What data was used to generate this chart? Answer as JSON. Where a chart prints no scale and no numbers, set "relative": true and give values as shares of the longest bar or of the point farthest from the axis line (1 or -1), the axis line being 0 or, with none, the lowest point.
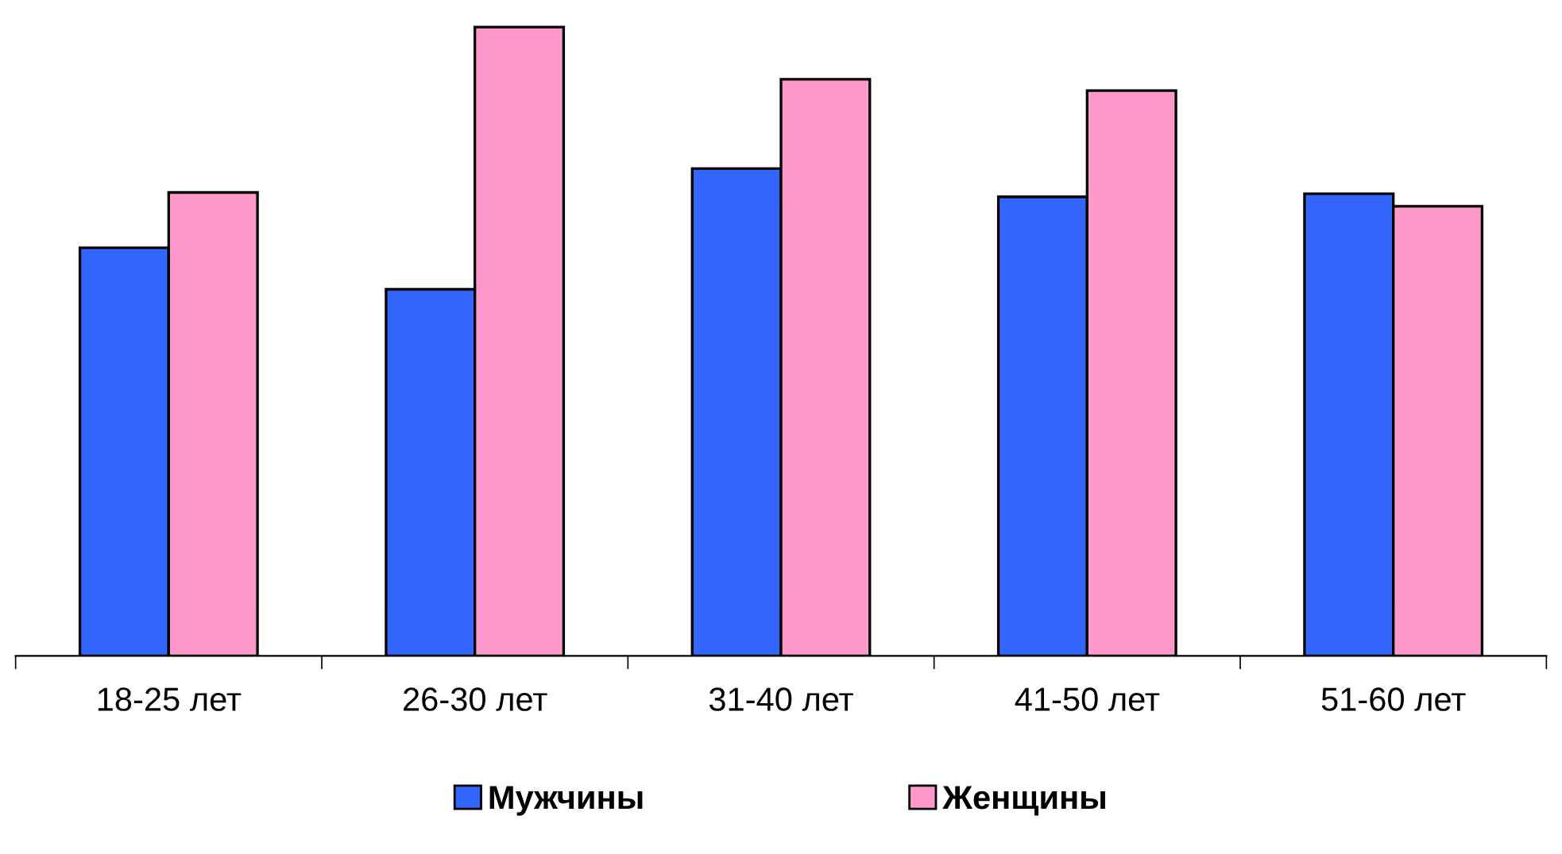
{
  "chart_data": {
    "type": "bar",
    "relative": true,
    "categories": [
      "18-25 лет",
      "26-30 лет",
      "31-40 лет",
      "41-50 лет",
      "51-60 лет"
    ],
    "series": [
      {
        "name": "Мужчины",
        "color": "#3366ff",
        "values": [
          0.649,
          0.583,
          0.775,
          0.73,
          0.735
        ]
      },
      {
        "name": "Женщины",
        "color": "#ff99cc",
        "values": [
          0.737,
          1,
          0.917,
          0.899,
          0.715
        ]
      }
    ],
    "legend": "bottom",
    "grid": false
  }
}
